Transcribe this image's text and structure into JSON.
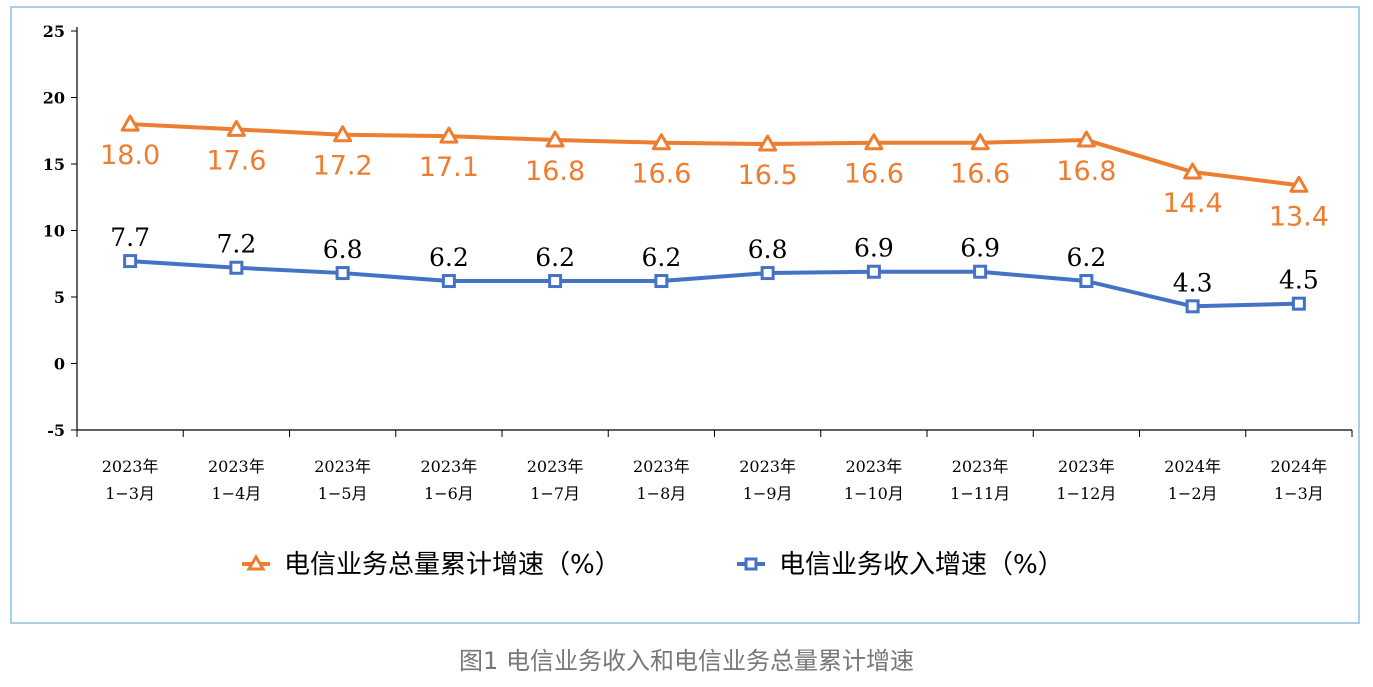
{
  "caption": "图1 电信业务收入和电信业务总量累计增速",
  "chart_data": {
    "type": "line",
    "categories": [
      [
        "2023年",
        "1−3月"
      ],
      [
        "2023年",
        "1−4月"
      ],
      [
        "2023年",
        "1−5月"
      ],
      [
        "2023年",
        "1−6月"
      ],
      [
        "2023年",
        "1−7月"
      ],
      [
        "2023年",
        "1−8月"
      ],
      [
        "2023年",
        "1−9月"
      ],
      [
        "2023年",
        "1−10月"
      ],
      [
        "2023年",
        "1−11月"
      ],
      [
        "2023年",
        "1−12月"
      ],
      [
        "2024年",
        "1−2月"
      ],
      [
        "2024年",
        "1−3月"
      ]
    ],
    "ylim": [
      -5,
      25
    ],
    "yticks": [
      "25",
      "20",
      "15",
      "10",
      "5",
      "0",
      "-5"
    ],
    "ytick_values": [
      25,
      20,
      15,
      10,
      5,
      0,
      -5
    ],
    "legend_position": "bottom",
    "series": [
      {
        "name": "电信业务总量累计增速（%）",
        "color": "#ed7d31",
        "marker": "triangle",
        "values": [
          18.0,
          17.6,
          17.2,
          17.1,
          16.8,
          16.6,
          16.5,
          16.6,
          16.6,
          16.8,
          14.4,
          13.4
        ],
        "labels": [
          "18.0",
          "17.6",
          "17.2",
          "17.1",
          "16.8",
          "16.6",
          "16.5",
          "16.6",
          "16.6",
          "16.8",
          "14.4",
          "13.4"
        ]
      },
      {
        "name": "电信业务收入增速（%）",
        "color": "#4472c4",
        "marker": "square",
        "values": [
          7.7,
          7.2,
          6.8,
          6.2,
          6.2,
          6.2,
          6.8,
          6.9,
          6.9,
          6.2,
          4.3,
          4.5
        ],
        "labels": [
          "7.7",
          "7.2",
          "6.8",
          "6.2",
          "6.2",
          "6.2",
          "6.8",
          "6.9",
          "6.9",
          "6.2",
          "4.3",
          "4.5"
        ]
      }
    ]
  }
}
